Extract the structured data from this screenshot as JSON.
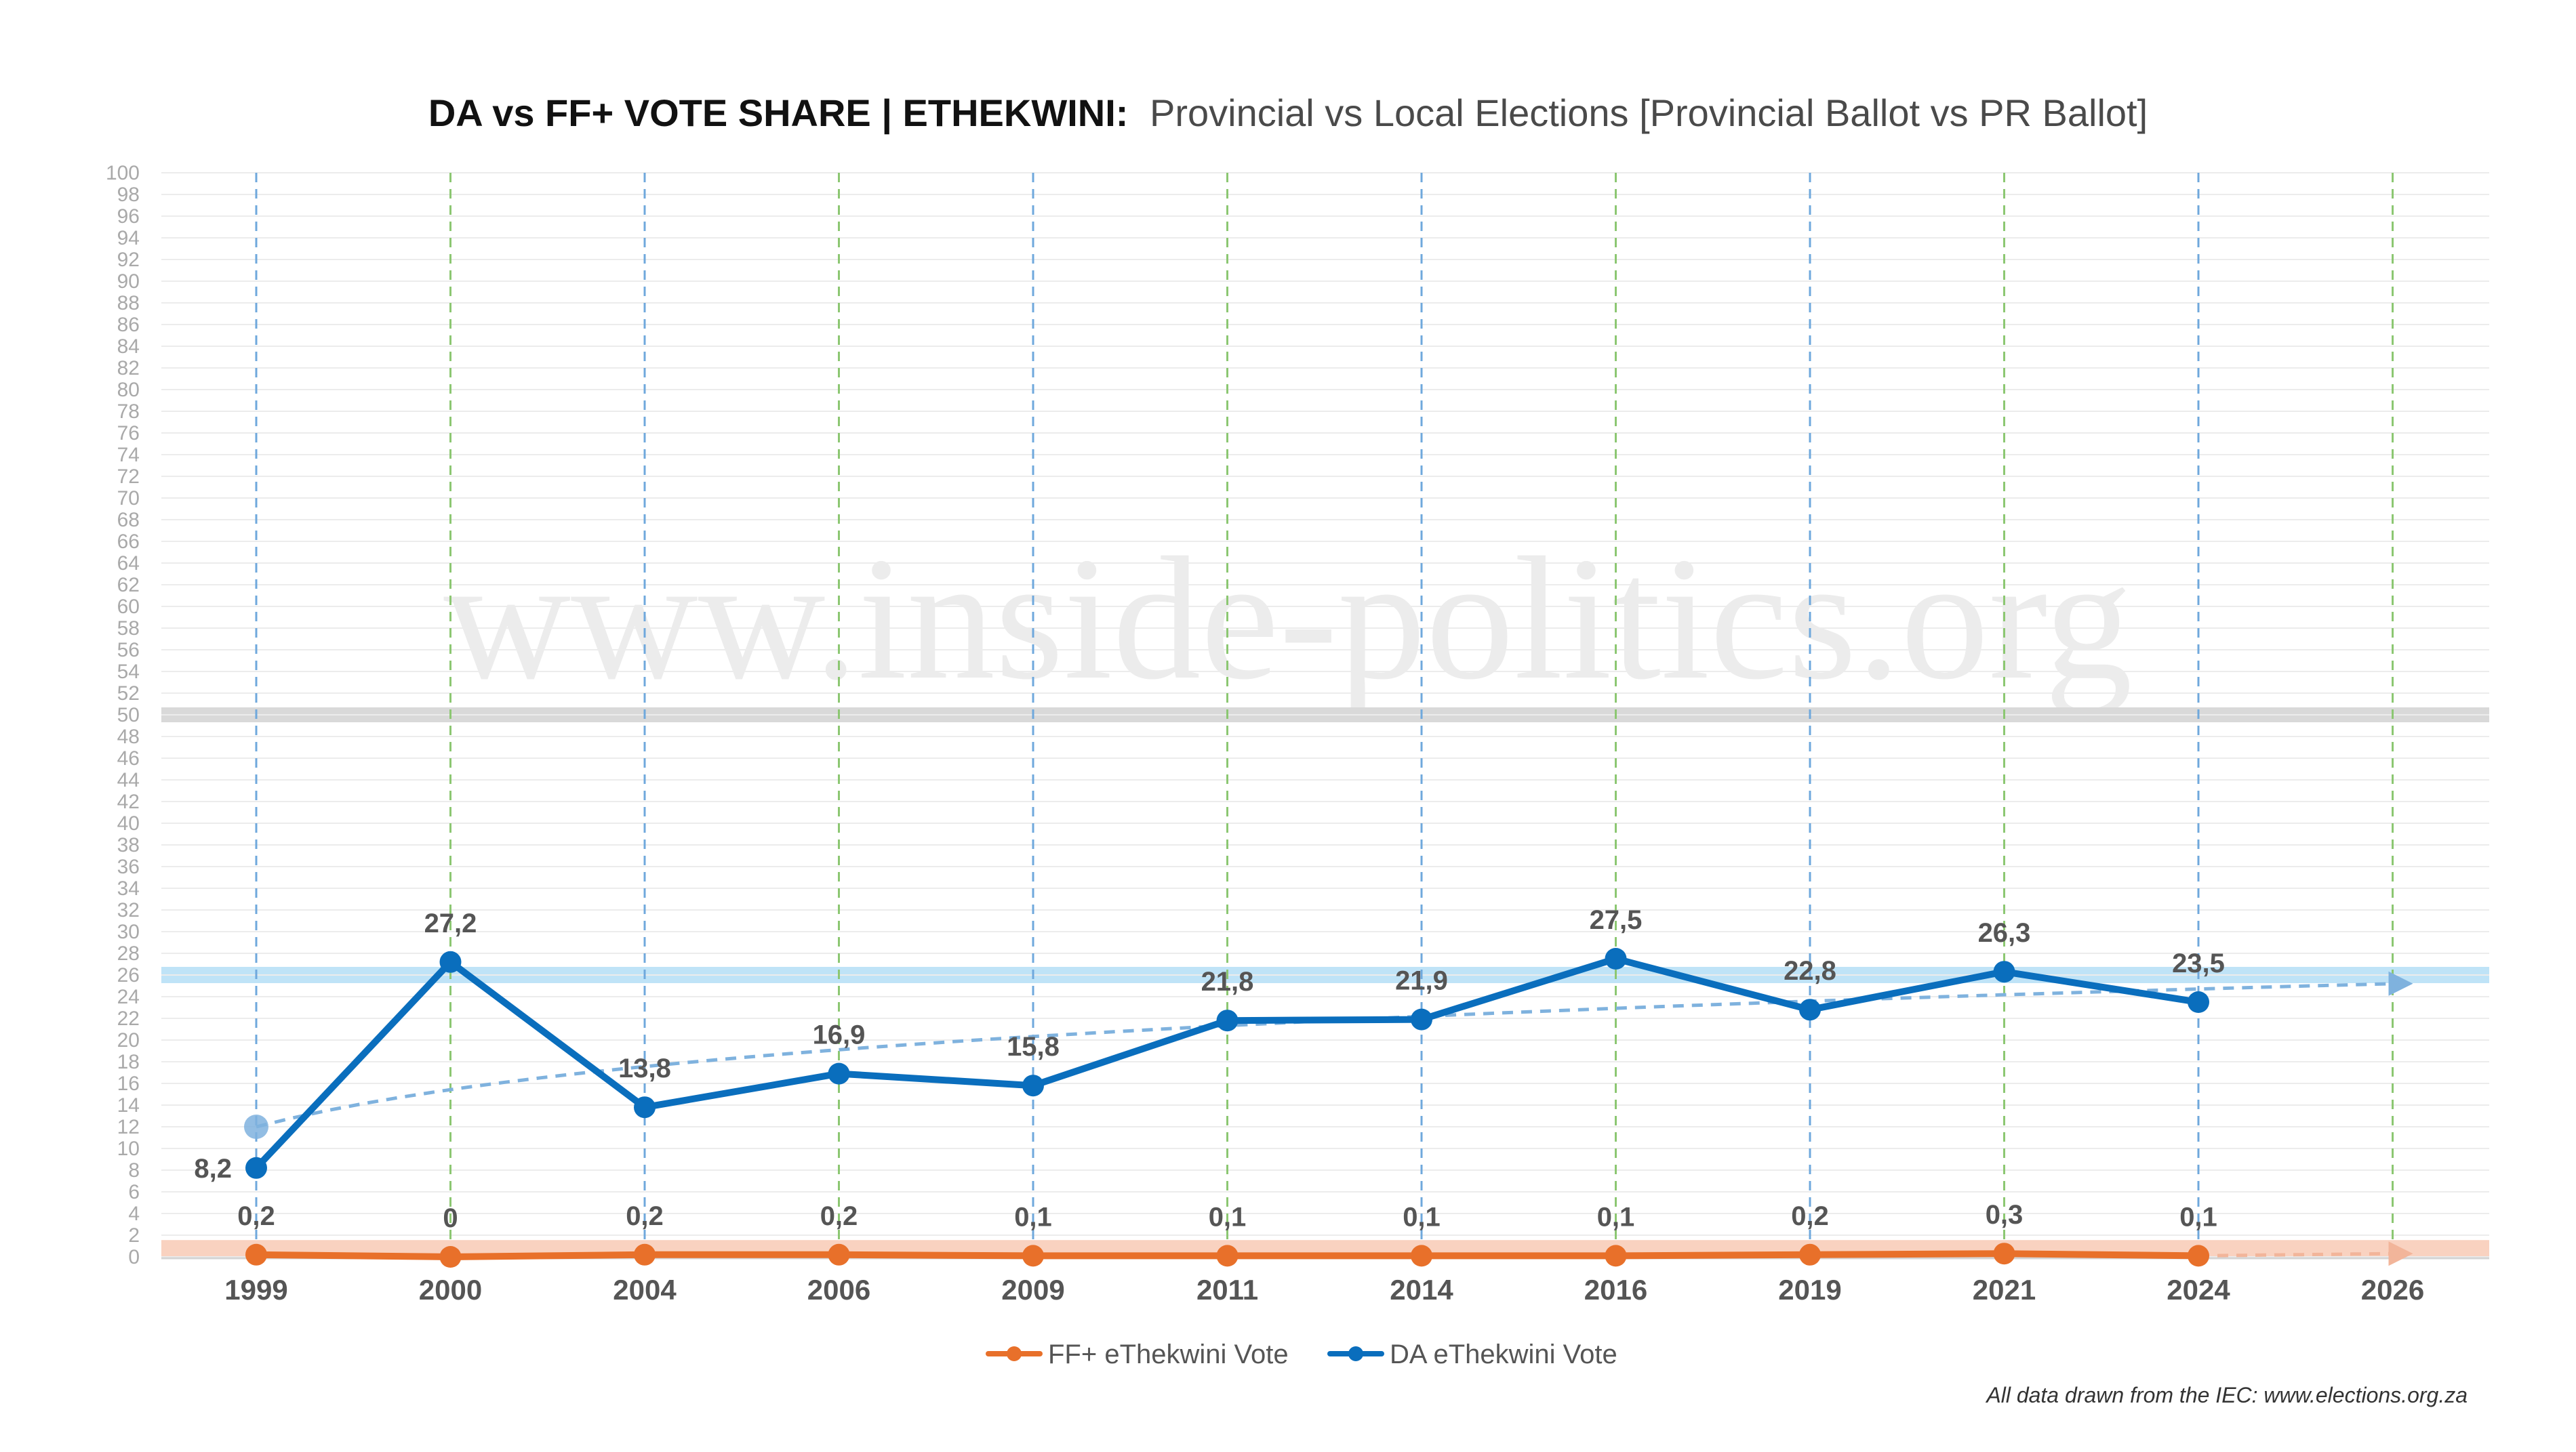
{
  "title": {
    "bold": "DA vs FF+ VOTE SHARE | ETHEKWINI:",
    "light": "Provincial vs Local Elections [Provincial Ballot vs PR Ballot]"
  },
  "watermark": "www.inside-politics.org",
  "source_note": "All data drawn from the IEC: www.elections.org.za",
  "colors": {
    "da": "#0A6EBD",
    "ffplus": "#E8702A",
    "trend": "#7FB2DE",
    "provincial_marker": "#6FA8DC",
    "local_marker": "#8CC772",
    "band_50": "#D9D9D9",
    "band_da": "#BFE3F7",
    "band_ff": "#F9D2C0"
  },
  "chart_data": {
    "type": "line",
    "title": "DA vs FF+ VOTE SHARE | ETHEKWINI: Provincial vs Local Elections [Provincial Ballot vs PR Ballot]",
    "xlabel": "",
    "ylabel": "",
    "categories": [
      "1999",
      "2000",
      "2004",
      "2006",
      "2009",
      "2011",
      "2014",
      "2016",
      "2019",
      "2021",
      "2024",
      "2026"
    ],
    "election_type": [
      "provincial",
      "local",
      "provincial",
      "local",
      "provincial",
      "local",
      "provincial",
      "local",
      "provincial",
      "local",
      "provincial",
      "local"
    ],
    "ylim": [
      0,
      100
    ],
    "ytick_step": 2,
    "grid": true,
    "series": [
      {
        "name": "DA eThekwini Vote",
        "values": [
          8.2,
          27.2,
          13.8,
          16.9,
          15.8,
          21.8,
          21.9,
          27.5,
          22.8,
          26.3,
          23.5,
          null
        ],
        "labels": [
          "8,2",
          "27,2",
          "13,8",
          "16,9",
          "15,8",
          "21,8",
          "21,9",
          "27,5",
          "22,8",
          "26,3",
          "23,5",
          ""
        ]
      },
      {
        "name": "FF+ eThekwini Vote",
        "values": [
          0.2,
          0,
          0.2,
          0.2,
          0.1,
          0.1,
          0.1,
          0.1,
          0.2,
          0.3,
          0.1,
          null
        ],
        "labels": [
          "0,2",
          "0",
          "0,2",
          "0,2",
          "0,1",
          "0,1",
          "0,1",
          "0,1",
          "0,2",
          "0,3",
          "0,1",
          ""
        ]
      }
    ],
    "trendlines": [
      {
        "series": "DA eThekwini Vote",
        "type": "logarithmic",
        "from_category": "1999",
        "to_category": "2026",
        "start_value": 12,
        "end_value": 25.2
      },
      {
        "series": "FF+ eThekwini Vote",
        "type": "linear",
        "from_category": "2024",
        "to_category": "2026",
        "start_value": 0.1,
        "end_value": 0.3
      }
    ],
    "reference_bands": [
      {
        "name": "majority",
        "value": 50
      },
      {
        "name": "DA band",
        "value": 26
      },
      {
        "name": "FF+ band",
        "value": 0.8
      }
    ],
    "legend": [
      "FF+ eThekwini Vote",
      "DA eThekwini Vote"
    ],
    "legend_position": "bottom-center"
  }
}
